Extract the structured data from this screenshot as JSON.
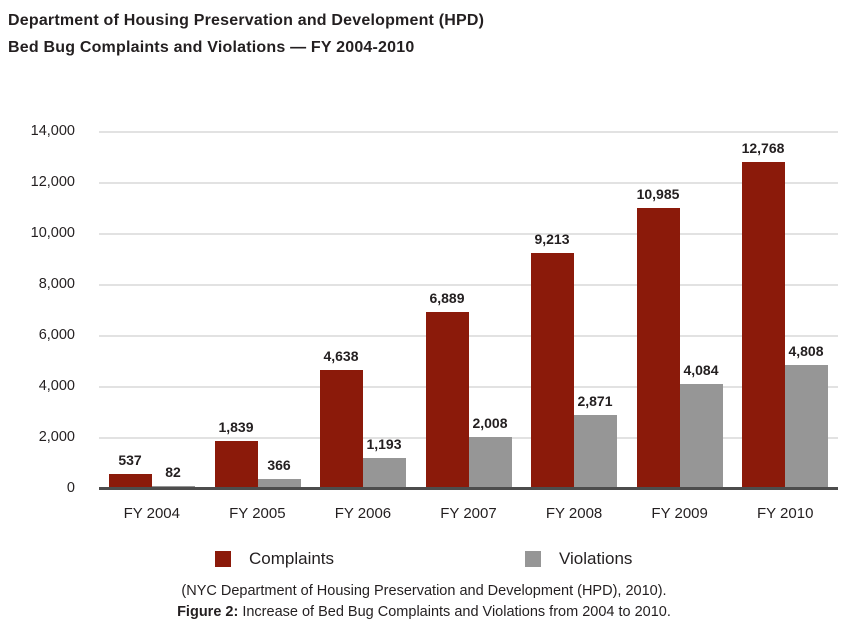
{
  "chart_data": {
    "type": "bar",
    "title_line1": "Department of Housing Preservation and Development (HPD)",
    "title_line2": "Bed Bug Complaints and Violations — FY 2004-2010",
    "categories": [
      "FY 2004",
      "FY 2005",
      "FY 2006",
      "FY 2007",
      "FY 2008",
      "FY 2009",
      "FY 2010"
    ],
    "series": [
      {
        "name": "Complaints",
        "color": "#8b1a0a",
        "values": [
          537,
          1839,
          4638,
          6889,
          9213,
          10985,
          12768
        ],
        "labels": [
          "537",
          "1,839",
          "4,638",
          "6,889",
          "9,213",
          "10,985",
          "12,768"
        ]
      },
      {
        "name": "Violations",
        "color": "#969696",
        "values": [
          82,
          366,
          1193,
          2008,
          2871,
          4084,
          4808
        ],
        "labels": [
          "82",
          "366",
          "1,193",
          "2,008",
          "2,871",
          "4,084",
          "4,808"
        ]
      }
    ],
    "ylim": [
      0,
      14000
    ],
    "ytick_interval": 2000,
    "ytick_labels": [
      "0",
      "2,000",
      "4,000",
      "6,000",
      "8,000",
      "10,000",
      "12,000",
      "14,000"
    ],
    "grid": true,
    "legend_position": "bottom",
    "caption_source": "(NYC Department of Housing Preservation and Development (HPD), 2010).",
    "caption_figure_label": "Figure 2:",
    "caption_figure_text": " Increase of Bed Bug Complaints and Violations from 2004 to 2010."
  },
  "colors": {
    "complaints": "#8b1a0a",
    "violations": "#969696",
    "gridline": "#e2e2e2",
    "axis_line": "#4d4d4d",
    "text": "#231f20"
  }
}
